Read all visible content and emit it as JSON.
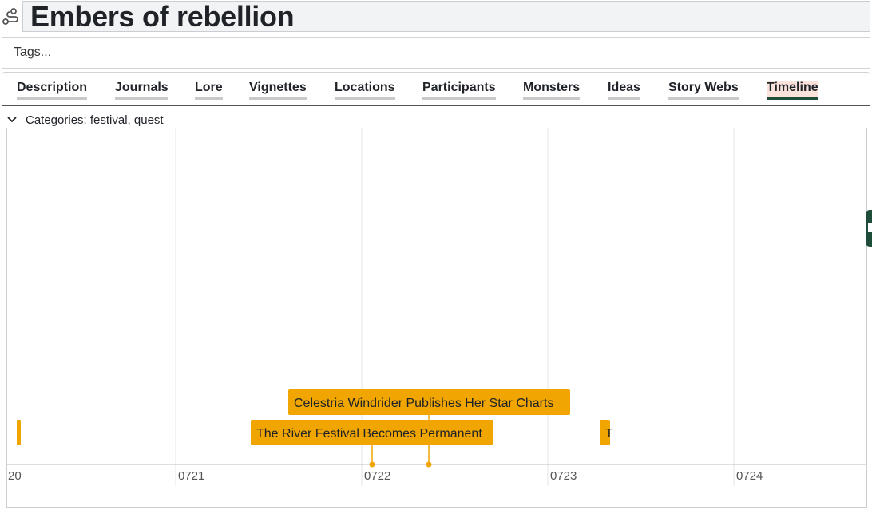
{
  "header": {
    "title": "Embers of rebellion",
    "icon": "story-path-icon"
  },
  "tags": {
    "placeholder": "Tags..."
  },
  "tabs": [
    {
      "label": "Description",
      "active": false
    },
    {
      "label": "Journals",
      "active": false
    },
    {
      "label": "Lore",
      "active": false
    },
    {
      "label": "Vignettes",
      "active": false
    },
    {
      "label": "Locations",
      "active": false
    },
    {
      "label": "Participants",
      "active": false
    },
    {
      "label": "Monsters",
      "active": false
    },
    {
      "label": "Ideas",
      "active": false
    },
    {
      "label": "Story Webs",
      "active": false
    },
    {
      "label": "Timeline",
      "active": true
    }
  ],
  "categories": {
    "label": "Categories: festival, quest"
  },
  "timeline": {
    "axis_labels": [
      "20",
      "0721",
      "0722",
      "0723",
      "0724"
    ],
    "events": [
      {
        "title": "Celestria Windrider Publishes Her Star Charts"
      },
      {
        "title": "The River Festival Becomes Permanent"
      },
      {
        "title": "T"
      },
      {
        "title": ""
      }
    ],
    "colors": {
      "event": "#f0a500",
      "grid": "#e6e6e6",
      "axis": "#bdbdbd",
      "accent": "#1e4d3a"
    }
  }
}
